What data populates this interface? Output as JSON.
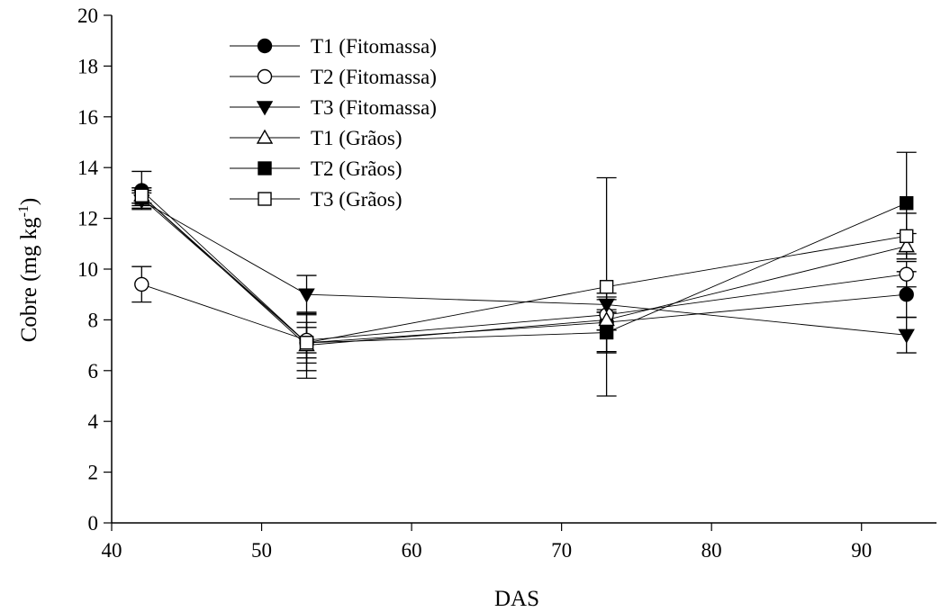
{
  "chart_data": {
    "type": "line",
    "xlabel": "DAS",
    "ylabel": "Cobre (mg kg",
    "ylabel_superscript": "-1",
    "ylabel_suffix": ")",
    "xlim": [
      40,
      95
    ],
    "ylim": [
      0,
      20
    ],
    "xticks": [
      40,
      50,
      60,
      70,
      80,
      90
    ],
    "yticks": [
      0,
      2,
      4,
      6,
      8,
      10,
      12,
      14,
      16,
      18,
      20
    ],
    "grid": false,
    "legend_position": "top-left",
    "x": [
      42,
      53,
      73,
      93
    ],
    "series": [
      {
        "name": "T1 (Fitomassa)",
        "marker": "filled-circle",
        "values": [
          13.1,
          7.1,
          7.9,
          9.0
        ],
        "errors": [
          0.75,
          0.8,
          1.15,
          0.9
        ]
      },
      {
        "name": "T2 (Fitomassa)",
        "marker": "open-circle",
        "values": [
          9.4,
          7.2,
          8.2,
          9.8
        ],
        "errors": [
          0.7,
          0.5,
          0.6,
          0.5
        ]
      },
      {
        "name": "T3 (Fitomassa)",
        "marker": "filled-triangle-down",
        "values": [
          12.7,
          9.0,
          8.6,
          7.4
        ],
        "errors": [
          0.3,
          0.75,
          0.3,
          0.7
        ]
      },
      {
        "name": "T1 (Grãos)",
        "marker": "open-triangle-up",
        "values": [
          12.9,
          7.0,
          8.0,
          10.9
        ],
        "errors": [
          0.3,
          1.3,
          0.4,
          0.5
        ]
      },
      {
        "name": "T2 (Grãos)",
        "marker": "filled-square",
        "values": [
          12.8,
          7.1,
          7.5,
          12.6
        ],
        "errors": [
          0.3,
          0.6,
          0.8,
          2.0
        ]
      },
      {
        "name": "T3 (Grãos)",
        "marker": "open-square",
        "values": [
          12.9,
          7.1,
          9.3,
          11.3
        ],
        "errors": [
          0.3,
          1.1,
          4.3,
          0.9
        ]
      }
    ]
  }
}
